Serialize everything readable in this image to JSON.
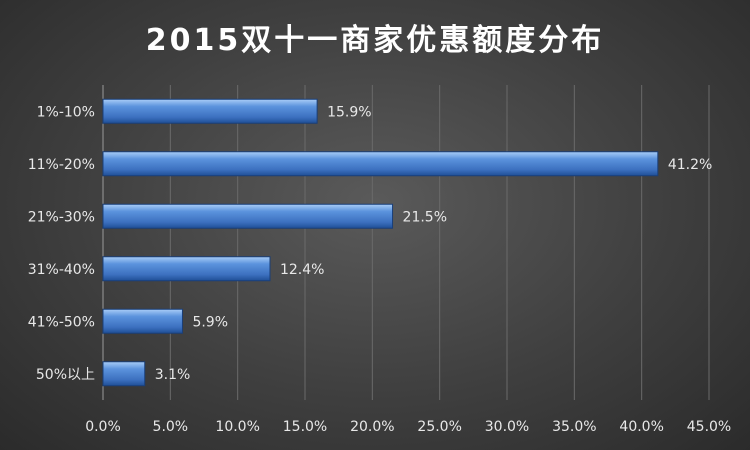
{
  "chart_data": {
    "type": "bar",
    "orientation": "horizontal",
    "title": "2015双十一商家优惠额度分布",
    "categories": [
      "1%-10%",
      "11%-20%",
      "21%-30%",
      "31%-40%",
      "41%-50%",
      "50%以上"
    ],
    "values": [
      15.9,
      41.2,
      21.5,
      12.4,
      5.9,
      3.1
    ],
    "data_labels": [
      "15.9%",
      "41.2%",
      "21.5%",
      "12.4%",
      "5.9%",
      "3.1%"
    ],
    "x_ticks": [
      "0.0%",
      "5.0%",
      "10.0%",
      "15.0%",
      "20.0%",
      "25.0%",
      "30.0%",
      "35.0%",
      "40.0%",
      "45.0%"
    ],
    "xlim": [
      0,
      45
    ],
    "xlabel": "",
    "ylabel": "",
    "grid": true,
    "legend": "none",
    "colors": {
      "bar": "#4f86d2",
      "bar_dark": "#1f4f96",
      "bar_light": "#a9cdf7"
    }
  }
}
